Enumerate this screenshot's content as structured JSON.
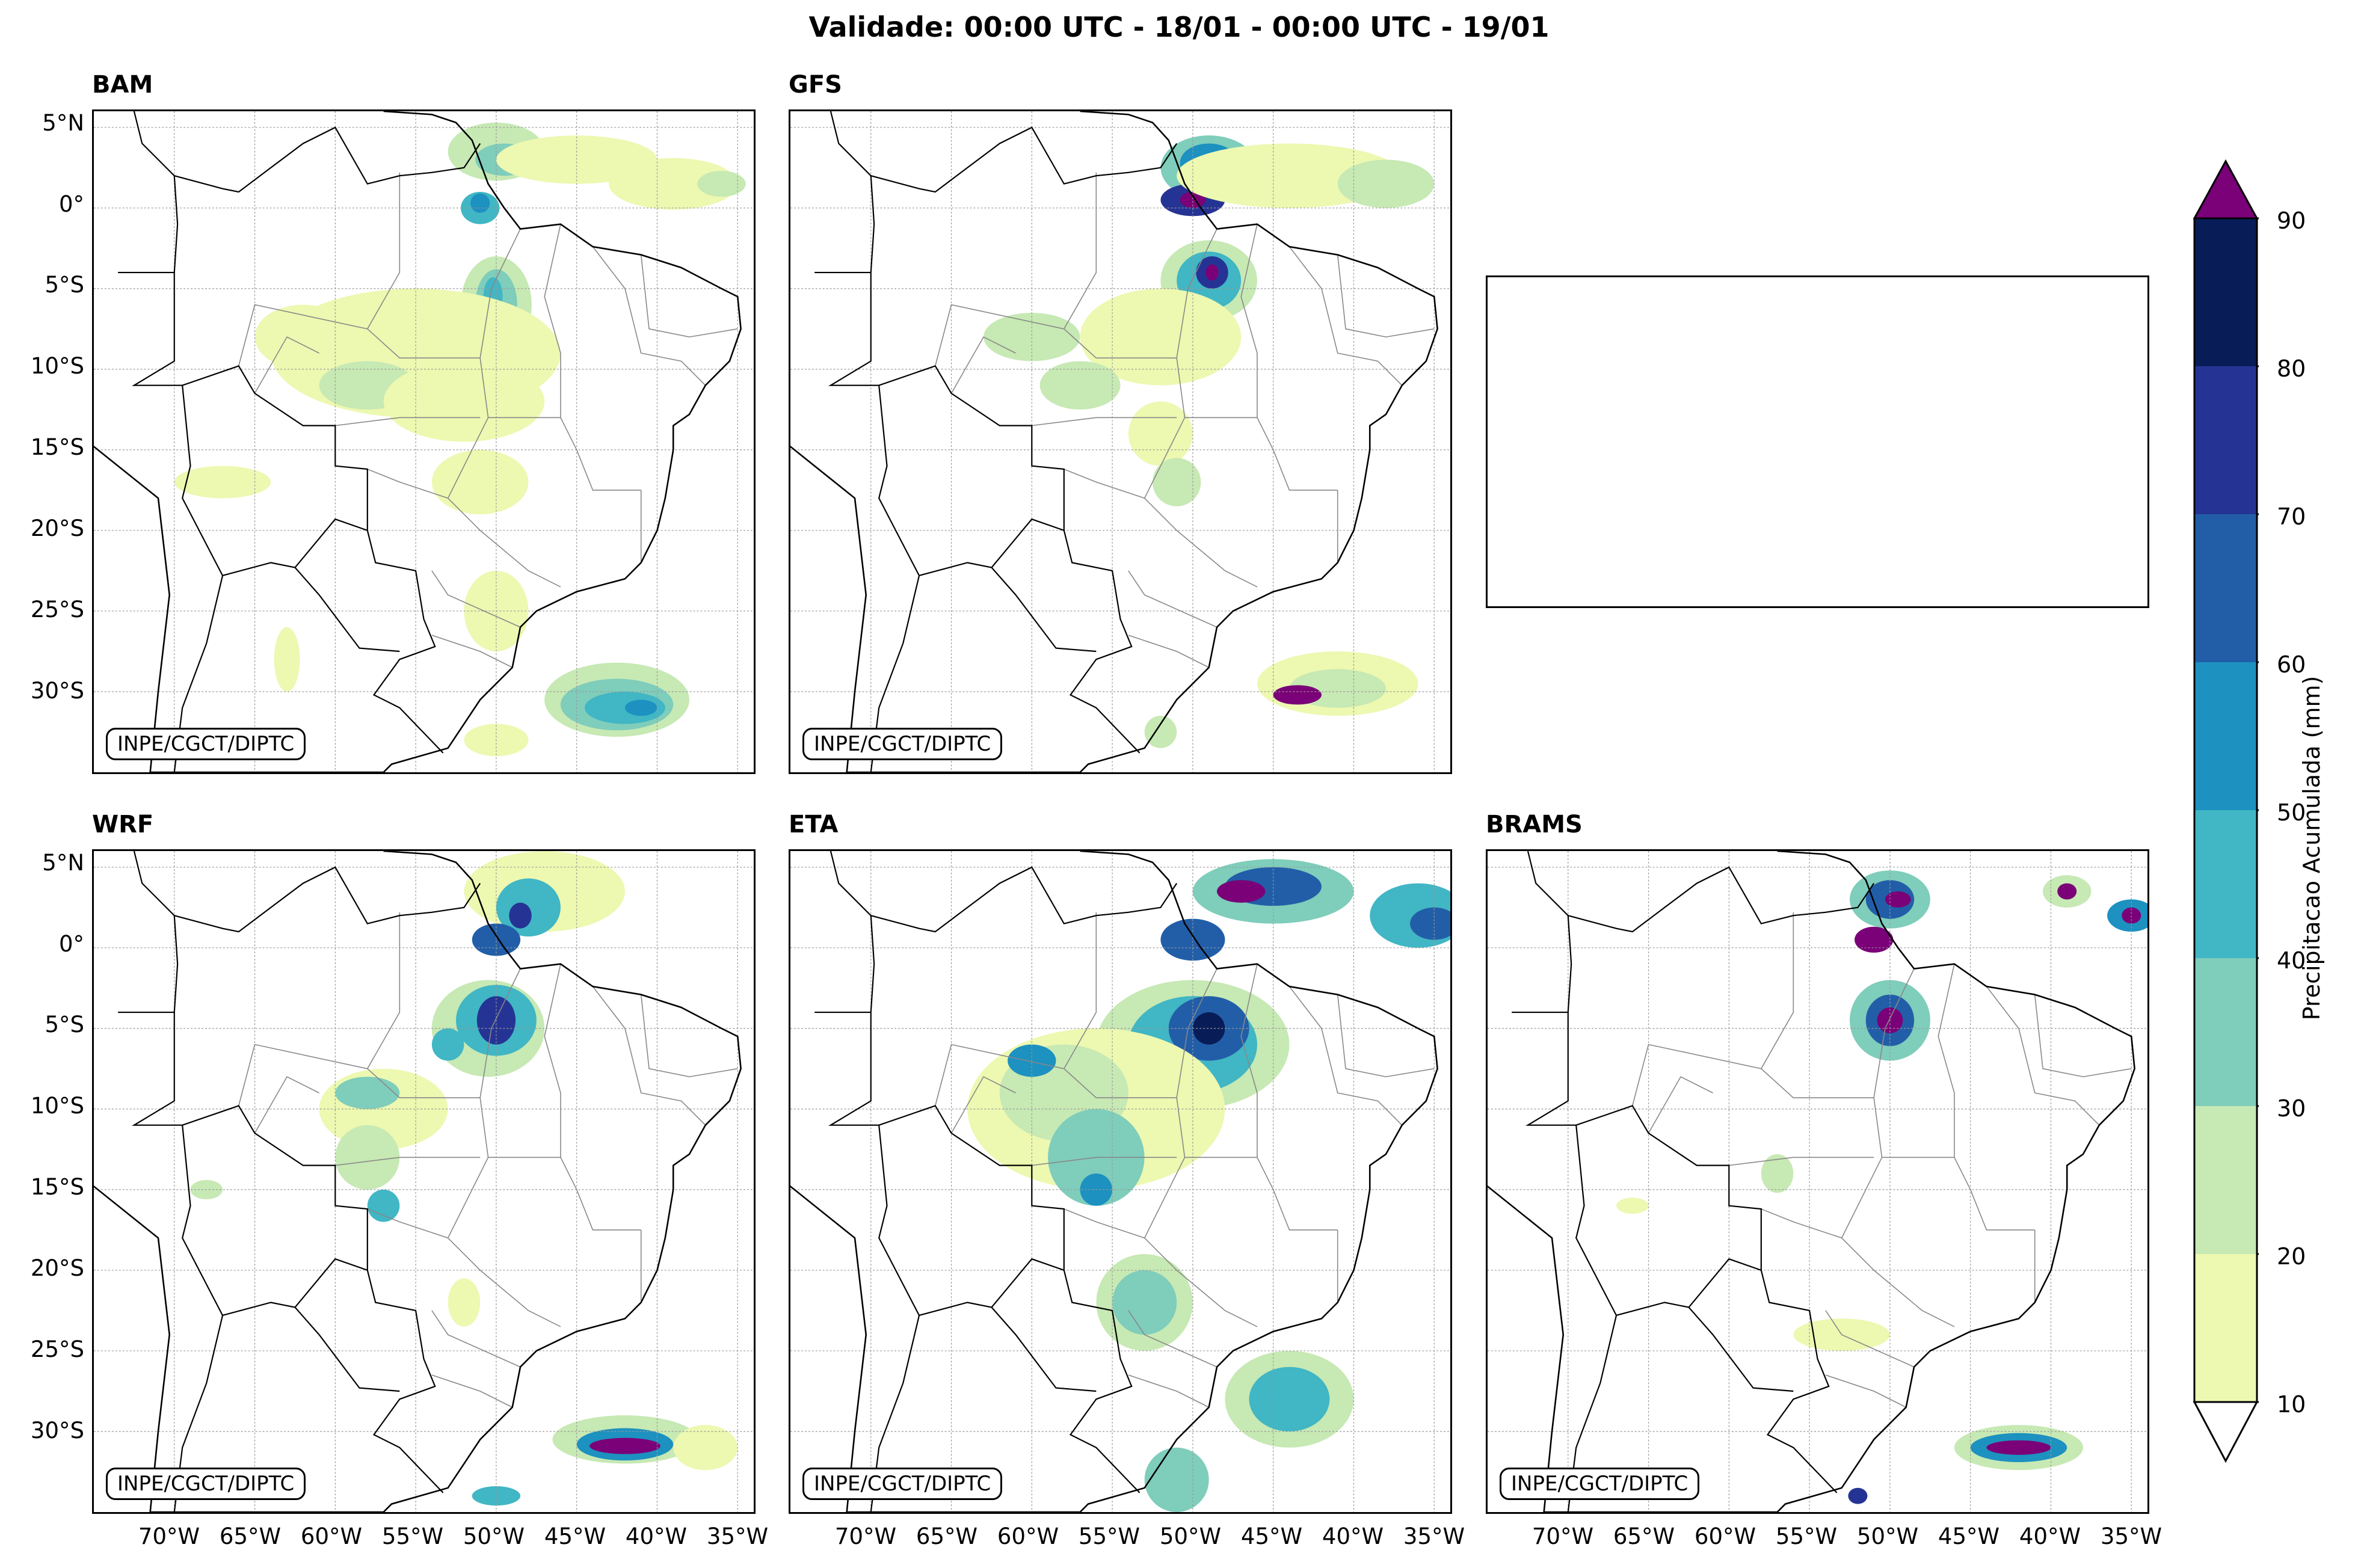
{
  "title": "Validade: 00:00 UTC - 18/01 - 00:00 UTC - 19/01",
  "credit_text": "INPE/CGCT/DIPTC",
  "panels": [
    {
      "name": "BAM",
      "has_map": true
    },
    {
      "name": "GFS",
      "has_map": true
    },
    {
      "name": "",
      "has_map": false
    },
    {
      "name": "WRF",
      "has_map": true
    },
    {
      "name": "ETA",
      "has_map": true
    },
    {
      "name": "BRAMS",
      "has_map": true
    }
  ],
  "lat_labels": [
    "5°N",
    "0°",
    "5°S",
    "10°S",
    "15°S",
    "20°S",
    "25°S",
    "30°S"
  ],
  "lon_labels": [
    "70°W",
    "65°W",
    "60°W",
    "55°W",
    "50°W",
    "45°W",
    "40°W",
    "35°W"
  ],
  "colorbar": {
    "label": "Precipitacao Acumulada (mm)",
    "ticks": [
      "10",
      "20",
      "30",
      "40",
      "50",
      "60",
      "70",
      "80",
      "90"
    ],
    "colors": [
      "#edf8b1",
      "#c7e9b4",
      "#7fcdbb",
      "#41b6c4",
      "#1d91c0",
      "#225ea8",
      "#253494",
      "#081d58"
    ],
    "over_color": "#7a0177",
    "under_color": "#ffffff"
  },
  "precip_colors": {
    "c10": "#edf8b1",
    "c20": "#c7e9b4",
    "c30": "#7fcdbb",
    "c40": "#41b6c4",
    "c50": "#1d91c0",
    "c60": "#225ea8",
    "c70": "#253494",
    "c80": "#081d58",
    "c90": "#7a0177"
  }
}
